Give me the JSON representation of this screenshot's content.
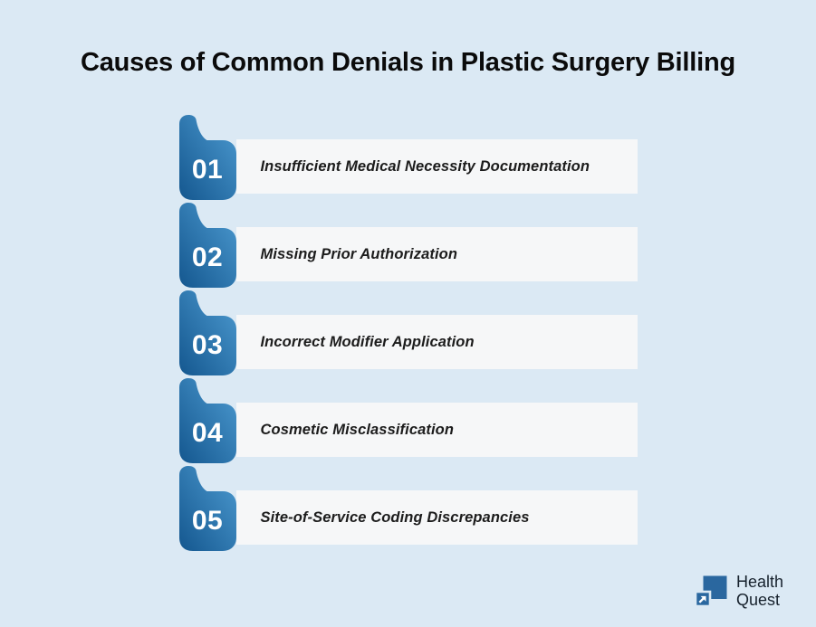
{
  "title": "Causes of Common Denials in Plastic Surgery Billing",
  "chart_data": {
    "type": "table",
    "title": "Causes of Common Denials in Plastic Surgery Billing",
    "categories": [
      "01",
      "02",
      "03",
      "04",
      "05"
    ],
    "values": [
      "Insufficient Medical Necessity Documentation",
      "Missing Prior Authorization",
      "Incorrect Modifier Application",
      "Cosmetic Misclassification",
      "Site-of-Service Coding Discrepancies"
    ]
  },
  "items": [
    {
      "number": "01",
      "label": "Insufficient Medical Necessity Documentation"
    },
    {
      "number": "02",
      "label": "Missing Prior Authorization"
    },
    {
      "number": "03",
      "label": "Incorrect Modifier Application"
    },
    {
      "number": "04",
      "label": "Cosmetic Misclassification"
    },
    {
      "number": "05",
      "label": "Site-of-Service Coding Discrepancies"
    }
  ],
  "logo": {
    "line1": "Health",
    "line2": "Quest",
    "icon": "arrow-up-right-icon"
  },
  "colors": {
    "background": "#dbe9f4",
    "badge_gradient_start": "#14578f",
    "badge_gradient_end": "#4d9bd1",
    "bar_background": "#f6f7f8",
    "title_text": "#0b0b0b",
    "item_text": "#1c1c1c",
    "logo_blue": "#2a679f",
    "logo_text": "#17222d"
  }
}
